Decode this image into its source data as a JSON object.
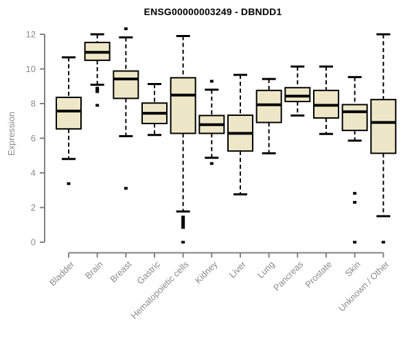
{
  "chart_data": {
    "type": "boxplot",
    "title": "ENSG00000003249 - DBNDD1",
    "xlabel": "",
    "ylabel": "Expression",
    "ylim": [
      0,
      12
    ],
    "yticks": [
      0,
      2,
      4,
      6,
      8,
      10,
      12
    ],
    "grid": false,
    "legend": "none",
    "categories": [
      "Bladder",
      "Brain",
      "Breast",
      "Gastric",
      "Hematopoietic cells",
      "Kidney",
      "Liver",
      "Lung",
      "Pancreas",
      "Prostate",
      "Skin",
      "Unknown / Other"
    ],
    "series": [
      {
        "name": "Bladder",
        "whisker_low": 4.8,
        "q1": 6.54,
        "median": 7.57,
        "q3": 8.36,
        "whisker_high": 10.67,
        "outliers": [
          3.38
        ]
      },
      {
        "name": "Brain",
        "whisker_low": 9.09,
        "q1": 10.5,
        "median": 10.96,
        "q3": 11.53,
        "whisker_high": 12.0,
        "outliers": [
          8.89,
          8.79,
          8.69,
          7.9
        ]
      },
      {
        "name": "Breast",
        "whisker_low": 6.12,
        "q1": 8.3,
        "median": 9.42,
        "q3": 9.88,
        "whisker_high": 11.82,
        "outliers": [
          12.32,
          3.11
        ]
      },
      {
        "name": "Gastric",
        "whisker_low": 6.19,
        "q1": 6.85,
        "median": 7.44,
        "q3": 8.03,
        "whisker_high": 9.13,
        "outliers": []
      },
      {
        "name": "Hematopoietic cells",
        "whisker_low": 1.77,
        "q1": 6.28,
        "median": 8.49,
        "q3": 9.49,
        "whisker_high": 11.9,
        "outliers": [
          1.45,
          1.33,
          1.21,
          1.09,
          0.97,
          0.85,
          0.0
        ]
      },
      {
        "name": "Kidney",
        "whisker_low": 4.87,
        "q1": 6.28,
        "median": 6.78,
        "q3": 7.31,
        "whisker_high": 8.8,
        "outliers": [
          9.29,
          4.54
        ]
      },
      {
        "name": "Liver",
        "whisker_low": 2.76,
        "q1": 5.26,
        "median": 6.28,
        "q3": 7.33,
        "whisker_high": 9.66,
        "outliers": []
      },
      {
        "name": "Lung",
        "whisker_low": 5.13,
        "q1": 6.91,
        "median": 7.93,
        "q3": 8.76,
        "whisker_high": 9.42,
        "outliers": []
      },
      {
        "name": "Pancreas",
        "whisker_low": 7.31,
        "q1": 8.12,
        "median": 8.43,
        "q3": 8.92,
        "whisker_high": 10.14,
        "outliers": []
      },
      {
        "name": "Prostate",
        "whisker_low": 6.25,
        "q1": 7.17,
        "median": 7.9,
        "q3": 8.76,
        "whisker_high": 10.14,
        "outliers": []
      },
      {
        "name": "Skin",
        "whisker_low": 5.86,
        "q1": 6.45,
        "median": 7.53,
        "q3": 7.94,
        "whisker_high": 9.53,
        "outliers": [
          2.82,
          2.3,
          0.0
        ]
      },
      {
        "name": "Unknown / Other",
        "whisker_low": 1.5,
        "q1": 5.13,
        "median": 6.91,
        "q3": 8.23,
        "whisker_high": 12.0,
        "outliers": [
          0.0
        ]
      }
    ]
  },
  "styles": {
    "box_fill": "#EDE7C7",
    "box_stroke": "#000000",
    "median_color": "#000000",
    "whisker_color": "#000000",
    "outlier_color": "#000000",
    "axis_color": "#808080",
    "label_color": "#8a8a8a",
    "title_color": "#000000",
    "background": "#ffffff"
  }
}
